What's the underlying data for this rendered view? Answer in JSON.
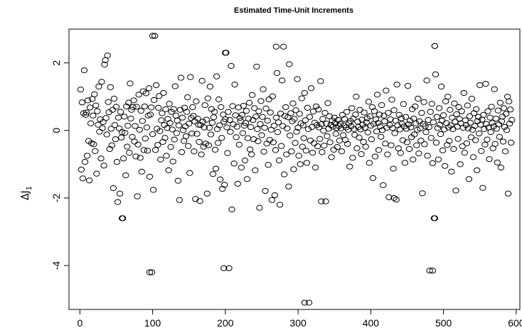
{
  "chart_data": {
    "type": "scatter",
    "title": "Estimated Time-Unit Increments",
    "xlabel": "",
    "ylabel": "ΔJ",
    "ylabel_sub": "1",
    "xlim": [
      -15,
      605
    ],
    "ylim": [
      -5.3,
      3.0
    ],
    "xticks": [
      0,
      100,
      200,
      300,
      400,
      500,
      600
    ],
    "yticks": [
      -4,
      -2,
      0,
      2
    ],
    "xtick_labels": [
      "0",
      "100",
      "200",
      "300",
      "400",
      "500",
      "600"
    ],
    "ytick_labels": [
      "-4",
      "-2",
      "0",
      "2"
    ],
    "marker": "open-circle",
    "grid": false,
    "n_points": 585,
    "highlighted_points": [
      {
        "x": 100,
        "y": 2.8
      },
      {
        "x": 200,
        "y": 2.3
      },
      {
        "x": 270,
        "y": 2.48
      },
      {
        "x": 488,
        "y": 2.5
      },
      {
        "x": 96,
        "y": -4.2
      },
      {
        "x": 198,
        "y": -4.08
      },
      {
        "x": 485,
        "y": -4.15
      },
      {
        "x": 309,
        "y": -5.1
      },
      {
        "x": 58,
        "y": -2.6
      },
      {
        "x": 488,
        "y": -2.6
      },
      {
        "x": 332,
        "y": -2.1
      },
      {
        "x": 432,
        "y": -2.0
      }
    ],
    "y_values": [
      1.21,
      -1.16,
      0.83,
      -1.42,
      0.51,
      1.78,
      -0.93,
      0.46,
      0.53,
      -0.75,
      0.89,
      -0.31,
      -1.48,
      0.68,
      0.21,
      -0.38,
      0.93,
      0.44,
      -0.41,
      1.07,
      -0.61,
      0.74,
      -1.28,
      0.57,
      0.17,
      1.3,
      -0.04,
      0.33,
      -0.83,
      1.44,
      0.07,
      0.25,
      -1.04,
      1.95,
      2.08,
      0.37,
      -0.12,
      2.22,
      0.84,
      0.54,
      -0.55,
      1.28,
      0.05,
      -0.44,
      0.61,
      -1.71,
      0.94,
      0.16,
      -0.26,
      0.7,
      -0.93,
      -2.12,
      0.38,
      0.06,
      -1.87,
      0.55,
      -0.21,
      -0.05,
      -2.6,
      -0.83,
      0.41,
      -0.07,
      -1.33,
      0.71,
      -0.48,
      0.14,
      0.82,
      -0.66,
      1.39,
      0.35,
      0.61,
      -0.19,
      0.69,
      0.89,
      -0.33,
      0.13,
      -0.77,
      0.7,
      -1.95,
      -0.42,
      1.06,
      0.02,
      -0.81,
      0.58,
      -1.22,
      0.28,
      1.16,
      -0.58,
      0.71,
      -0.24,
      1.1,
      0.09,
      -0.6,
      0.44,
      1.25,
      -1.37,
      0.47,
      0.68,
      -4.2,
      -0.11,
      -1.76,
      0.9,
      2.8,
      -0.58,
      1.34,
      0.05,
      -0.43,
      0.67,
      1.02,
      -0.02,
      -0.86,
      0.3,
      0.51,
      -0.34,
      1.11,
      0.16,
      -0.22,
      0.63,
      -0.75,
      0.07,
      0.34,
      -1.18,
      0.79,
      0.22,
      -0.49,
      0.55,
      0.03,
      -0.92,
      0.63,
      -0.27,
      1.31,
      0.44,
      -0.08,
      0.29,
      -1.49,
      0.15,
      -2.06,
      0.61,
      1.56,
      -0.64,
      0.38,
      0.01,
      -0.31,
      0.67,
      0.12,
      -0.17,
      0.55,
      0.98,
      -0.46,
      0.2,
      -1.26,
      1.58,
      0.37,
      -0.09,
      0.69,
      0.43,
      -0.62,
      0.27,
      -2.03,
      0.86,
      -0.1,
      0.35,
      0.17,
      -0.34,
      -2.09,
      0.16,
      -0.71,
      1.47,
      0.26,
      -0.48,
      0.09,
      0.75,
      -0.39,
      0.32,
      -1.87,
      0.95,
      -0.44,
      0.08,
      1.3,
      -0.12,
      0.63,
      0.23,
      -1.29,
      0.39,
      0.55,
      -0.57,
      -1.13,
      1.6,
      0.04,
      -0.37,
      0.92,
      0.15,
      -1.45,
      0.69,
      -0.22,
      -1.73,
      0.47,
      0.26,
      -1.61,
      0.33,
      2.3,
      0.09,
      -0.67,
      0.55,
      -4.08,
      0.31,
      -0.04,
      1.91,
      -2.34,
      0.72,
      0.18,
      -0.98,
      1.36,
      0.45,
      -0.2,
      0.11,
      -1.58,
      0.68,
      -0.42,
      0.37,
      0.28,
      -1.1,
      0.46,
      -0.08,
      0.73,
      0.14,
      -0.89,
      0.22,
      0.58,
      -1.44,
      -0.23,
      0.35,
      0.82,
      -0.56,
      0.1,
      -0.71,
      1.05,
      0.31,
      -0.26,
      0.66,
      -1.18,
      0.41,
      1.89,
      0.04,
      -0.32,
      0.57,
      -2.29,
      0.19,
      0.87,
      -0.14,
      0.4,
      1.22,
      -0.63,
      0.08,
      -1.79,
      0.65,
      -0.39,
      0.29,
      -1.02,
      0.92,
      -0.28,
      0.53,
      0.02,
      -2.06,
      1.01,
      -0.35,
      0.14,
      -1.92,
      -0.58,
      0.38,
      1.7,
      -0.05,
      0.24,
      -0.89,
      -2.2,
      0.5,
      -0.46,
      1.48,
      0.13,
      2.48,
      -1.3,
      0.43,
      0.69,
      -0.71,
      0.06,
      0.39,
      -1.66,
      1.96,
      -0.15,
      0.51,
      -0.62,
      0.27,
      0.8,
      -1.15,
      0.34,
      -0.37,
      0.6,
      -0.04,
      1.52,
      0.08,
      -0.75,
      0.49,
      -1.0,
      0.21,
      0.95,
      -0.48,
      0.15,
      -0.23,
      1.11,
      0.3,
      -0.6,
      -0.96,
      0.67,
      0.04,
      -5.1,
      0.4,
      -0.3,
      1.25,
      0.1,
      -0.66,
      0.56,
      -0.38,
      0.23,
      -1.1,
      0.71,
      0.16,
      -0.47,
      0.62,
      0.09,
      -0.25,
      1.46,
      0.18,
      -0.64,
      0.34,
      -0.01,
      -0.45,
      0.52,
      -2.1,
      0.2,
      -0.17,
      0.81,
      0.05,
      0.42,
      -0.35,
      0.16,
      -0.79,
      0.29,
      0.11,
      -0.57,
      0.38,
      0.22,
      -0.1,
      0.07,
      -0.49,
      0.31,
      0.13,
      -0.3,
      0.2,
      0.06,
      -0.62,
      0.46,
      -0.14,
      0.15,
      0.34,
      -0.28,
      0.09,
      0.55,
      -0.4,
      0.02,
      0.21,
      -1.07,
      0.28,
      0.12,
      0.66,
      -0.81,
      0.35,
      0.04,
      -0.13,
      0.47,
      1.0,
      -0.53,
      0.26,
      0.1,
      -0.21,
      0.61,
      0.03,
      -0.7,
      0.32,
      0.17,
      -0.34,
      0.53,
      0.08,
      -0.48,
      0.24,
      0.36,
      -0.06,
      0.85,
      -0.96,
      0.42,
      0.14,
      -0.26,
      0.69,
      -1.41,
      0.19,
      0.57,
      -0.77,
      0.33,
      -0.03,
      1.06,
      0.22,
      -0.58,
      0.47,
      0.12,
      -0.19,
      0.75,
      0.01,
      -1.62,
      0.44,
      0.27,
      -0.39,
      1.18,
      0.08,
      -0.71,
      0.52,
      -1.98,
      0.16,
      0.33,
      -0.44,
      0.91,
      0.07,
      -1.13,
      0.6,
      -0.08,
      0.29,
      -2.05,
      1.36,
      0.15,
      -0.53,
      0.46,
      0.03,
      -0.67,
      0.36,
      0.2,
      -0.29,
      0.78,
      0.12,
      -0.96,
      0.4,
      0.05,
      -0.35,
      1.32,
      0.18,
      -0.55,
      0.29,
      0.09,
      -0.2,
      0.63,
      -0.86,
      0.35,
      -0.12,
      0.71,
      0.21,
      -0.44,
      0.02,
      0.94,
      -0.68,
      0.27,
      0.06,
      -0.3,
      0.52,
      -1.86,
      0.19,
      0.84,
      -0.41,
      0.13,
      -0.05,
      1.48,
      -0.75,
      0.31,
      0.1,
      -4.15,
      0.55,
      -0.22,
      0.79,
      -0.97,
      0.24,
      -2.6,
      2.5,
      1.66,
      -0.36,
      0.4,
      0.07,
      -0.86,
      0.66,
      0.17,
      -0.11,
      1.3,
      0.29,
      -0.59,
      0.45,
      0.03,
      -1.05,
      0.86,
      0.22,
      -0.43,
      1.0,
      0.09,
      -0.31,
      0.61,
      0.15,
      -1.22,
      0.38,
      0.04,
      -0.55,
      0.8,
      0.26,
      -1.78,
      0.48,
      0.11,
      -0.25,
      0.69,
      0.34,
      -1.0,
      0.21,
      0.57,
      -0.47,
      0.08,
      1.11,
      -0.66,
      0.3,
      0.16,
      -0.38,
      0.74,
      0.06,
      -1.44,
      0.42,
      0.23,
      -0.2,
      0.94,
      0.02,
      -0.79,
      0.51,
      0.13,
      -0.29,
      0.63,
      -1.18,
      0.28,
      0.4,
      -0.09,
      1.34,
      0.17,
      -0.61,
      0.32,
      -1.7,
      0.46,
      0.04,
      -0.42,
      1.38,
      0.19,
      -0.27,
      0.57,
      0.09,
      -0.85,
      0.38,
      -0.05,
      0.7,
      0.22,
      -0.53,
      0.12,
      1.22,
      -0.4,
      0.35,
      0.05,
      -0.95,
      0.59,
      0.18,
      -0.19,
      0.82,
      -1.1,
      0.27,
      0.41,
      -0.33,
      0.66,
      0.1,
      -0.62,
      0.49,
      0.01,
      1.0,
      -1.87,
      0.86,
      0.2,
      0.62,
      -0.36,
      0.31
    ]
  }
}
